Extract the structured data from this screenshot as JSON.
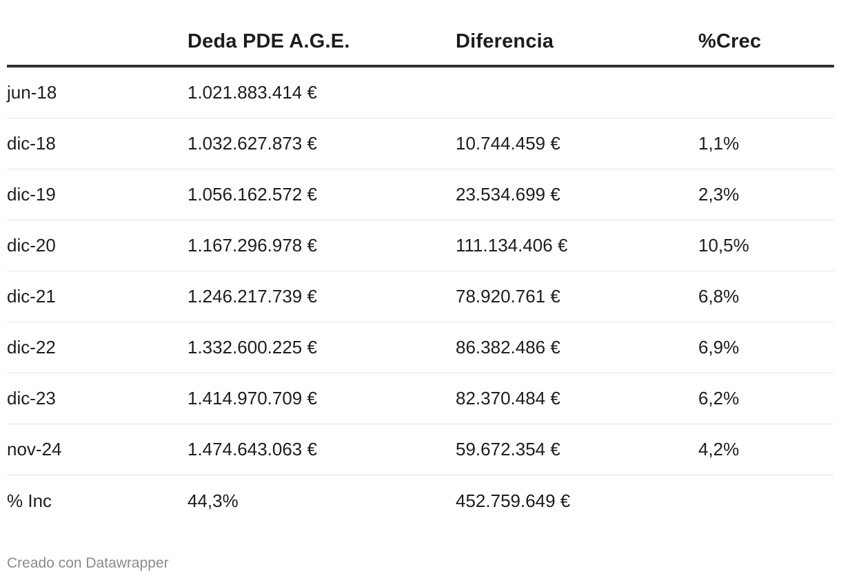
{
  "chart_data": {
    "type": "table",
    "columns": [
      "",
      "Deda PDE A.G.E.",
      "Diferencia",
      "%Crec"
    ],
    "rows": [
      {
        "period": "jun-18",
        "deuda": "1.021.883.414 €",
        "diferencia": "",
        "crec": ""
      },
      {
        "period": "dic-18",
        "deuda": "1.032.627.873 €",
        "diferencia": "10.744.459 €",
        "crec": "1,1%"
      },
      {
        "period": "dic-19",
        "deuda": "1.056.162.572 €",
        "diferencia": "23.534.699 €",
        "crec": "2,3%"
      },
      {
        "period": "dic-20",
        "deuda": "1.167.296.978 €",
        "diferencia": "111.134.406 €",
        "crec": "10,5%"
      },
      {
        "period": "dic-21",
        "deuda": "1.246.217.739 €",
        "diferencia": "78.920.761 €",
        "crec": "6,8%"
      },
      {
        "period": "dic-22",
        "deuda": "1.332.600.225 €",
        "diferencia": "86.382.486 €",
        "crec": "6,9%"
      },
      {
        "period": "dic-23",
        "deuda": "1.414.970.709 €",
        "diferencia": "82.370.484 €",
        "crec": "6,2%"
      },
      {
        "period": "nov-24",
        "deuda": "1.474.643.063 €",
        "diferencia": "59.672.354 €",
        "crec": "4,2%"
      },
      {
        "period": "% Inc",
        "deuda": "44,3%",
        "diferencia": "452.759.649 €",
        "crec": ""
      }
    ],
    "footer": "Creado con Datawrapper"
  }
}
